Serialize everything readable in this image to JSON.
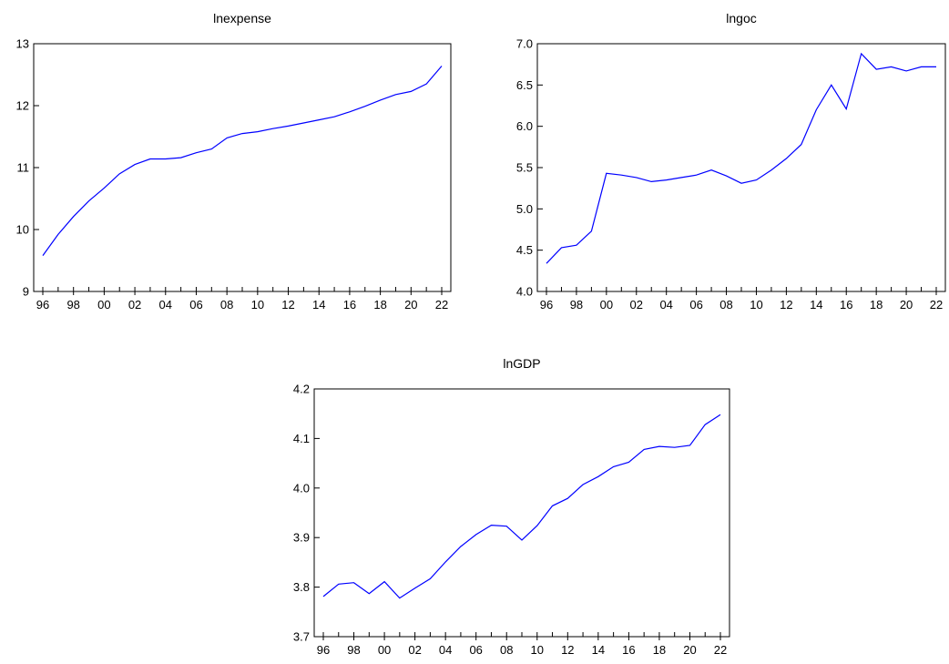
{
  "chart_data": [
    {
      "type": "line",
      "title": "lnexpense",
      "xlabel": "",
      "ylabel": "",
      "x_tick_labels": [
        "96",
        "98",
        "00",
        "02",
        "04",
        "06",
        "08",
        "10",
        "12",
        "14",
        "16",
        "18",
        "20",
        "22"
      ],
      "y_ticks": [
        9,
        10,
        11,
        12,
        13
      ],
      "y_tick_labels": [
        "9",
        "10",
        "11",
        "12",
        "13"
      ],
      "ylim": [
        9,
        13
      ],
      "grid": false,
      "legend": "none",
      "series": [
        {
          "color": "#0000ff",
          "x": [
            1996,
            1997,
            1998,
            1999,
            2000,
            2001,
            2002,
            2003,
            2004,
            2005,
            2006,
            2007,
            2008,
            2009,
            2010,
            2011,
            2012,
            2013,
            2014,
            2015,
            2016,
            2017,
            2018,
            2019,
            2020,
            2021,
            2022
          ],
          "values": [
            9.58,
            9.92,
            10.21,
            10.46,
            10.67,
            10.9,
            11.05,
            11.14,
            11.14,
            11.16,
            11.24,
            11.3,
            11.48,
            11.55,
            11.58,
            11.63,
            11.67,
            11.72,
            11.77,
            11.82,
            11.9,
            11.99,
            12.09,
            12.18,
            12.23,
            12.35,
            12.64
          ]
        }
      ]
    },
    {
      "type": "line",
      "title": "lngoc",
      "xlabel": "",
      "ylabel": "",
      "x_tick_labels": [
        "96",
        "98",
        "00",
        "02",
        "04",
        "06",
        "08",
        "10",
        "12",
        "14",
        "16",
        "18",
        "20",
        "22"
      ],
      "y_ticks": [
        4.0,
        4.5,
        5.0,
        5.5,
        6.0,
        6.5,
        7.0
      ],
      "y_tick_labels": [
        "4.0",
        "4.5",
        "5.0",
        "5.5",
        "6.0",
        "6.5",
        "7.0"
      ],
      "ylim": [
        4.0,
        7.0
      ],
      "grid": false,
      "legend": "none",
      "series": [
        {
          "color": "#0000ff",
          "x": [
            1996,
            1997,
            1998,
            1999,
            2000,
            2001,
            2002,
            2003,
            2004,
            2005,
            2006,
            2007,
            2008,
            2009,
            2010,
            2011,
            2012,
            2013,
            2014,
            2015,
            2016,
            2017,
            2018,
            2019,
            2020,
            2021,
            2022
          ],
          "values": [
            4.34,
            4.53,
            4.56,
            4.73,
            5.43,
            5.41,
            5.38,
            5.33,
            5.35,
            5.38,
            5.41,
            5.47,
            5.4,
            5.31,
            5.35,
            5.47,
            5.61,
            5.78,
            6.2,
            6.5,
            6.21,
            6.88,
            6.69,
            6.72,
            6.67,
            6.72,
            6.72
          ]
        }
      ]
    },
    {
      "type": "line",
      "title": "lnGDP",
      "xlabel": "",
      "ylabel": "",
      "x_tick_labels": [
        "96",
        "98",
        "00",
        "02",
        "04",
        "06",
        "08",
        "10",
        "12",
        "14",
        "16",
        "18",
        "20",
        "22"
      ],
      "y_ticks": [
        3.7,
        3.8,
        3.9,
        4.0,
        4.1,
        4.2
      ],
      "y_tick_labels": [
        "3.7",
        "3.8",
        "3.9",
        "4.0",
        "4.1",
        "4.2"
      ],
      "ylim": [
        3.7,
        4.2
      ],
      "grid": false,
      "legend": "none",
      "series": [
        {
          "color": "#0000ff",
          "x": [
            1996,
            1997,
            1998,
            1999,
            2000,
            2001,
            2002,
            2003,
            2004,
            2005,
            2006,
            2007,
            2008,
            2009,
            2010,
            2011,
            2012,
            2013,
            2014,
            2015,
            2016,
            2017,
            2018,
            2019,
            2020,
            2021,
            2022
          ],
          "values": [
            3.781,
            3.806,
            3.809,
            3.787,
            3.811,
            3.778,
            3.798,
            3.817,
            3.851,
            3.882,
            3.906,
            3.925,
            3.923,
            3.895,
            3.924,
            3.964,
            3.979,
            4.007,
            4.023,
            4.043,
            4.052,
            4.078,
            4.084,
            4.082,
            4.086,
            4.128,
            4.148
          ]
        }
      ]
    }
  ]
}
